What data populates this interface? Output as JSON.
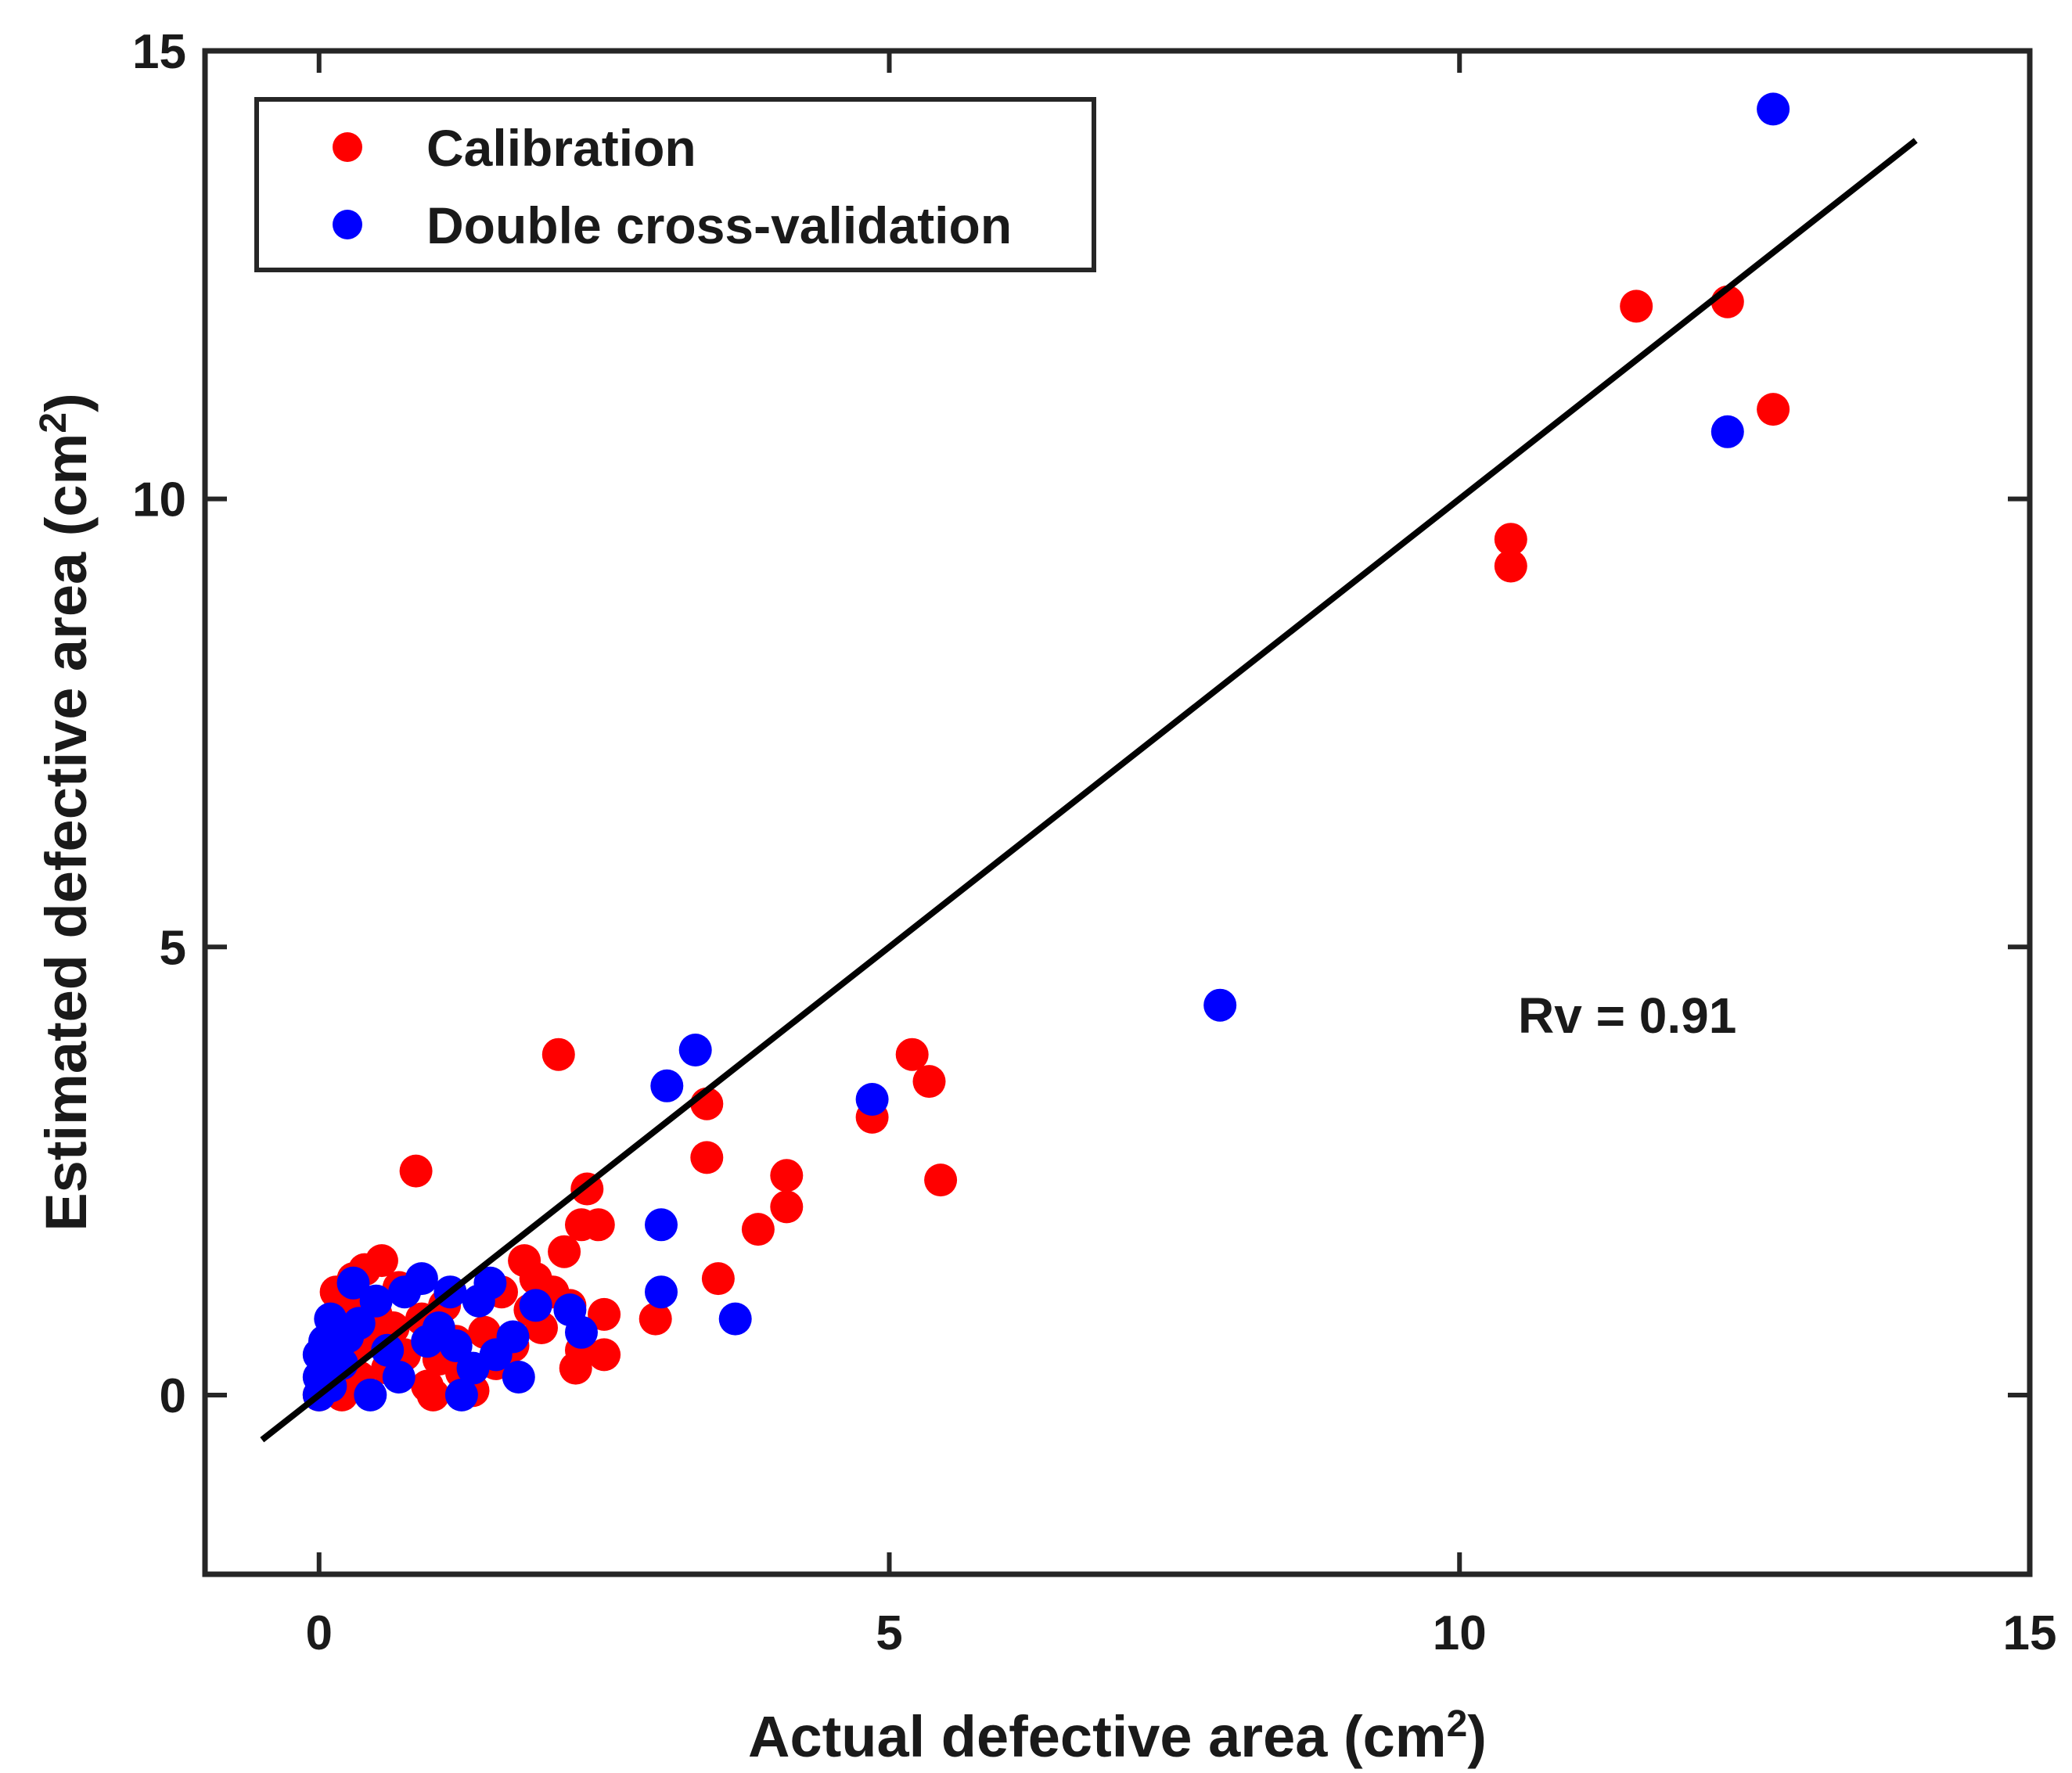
{
  "chart_data": {
    "type": "scatter",
    "title": "",
    "xlabel": "Actual defective area (cm",
    "xlabel_sup": "2",
    "xlabel_close": ")",
    "ylabel": "Estimated defective area (cm",
    "ylabel_sup": "2",
    "ylabel_close": ")",
    "xlim": [
      -1,
      15
    ],
    "ylim": [
      -2,
      15
    ],
    "xticks": [
      0,
      5,
      10,
      15
    ],
    "yticks": [
      0,
      5,
      10,
      15
    ],
    "grid": false,
    "legend_position": "top-left",
    "annotation": "Rv = 0.91",
    "fit_line": {
      "x": [
        -0.5,
        14.0
      ],
      "y": [
        -0.5,
        14.0
      ],
      "color": "#000000"
    },
    "series": [
      {
        "name": "Calibration",
        "color": "#ff0000",
        "points": [
          [
            0.0,
            0.0
          ],
          [
            0.05,
            0.1
          ],
          [
            0.1,
            0.3
          ],
          [
            0.1,
            0.55
          ],
          [
            0.15,
            0.8
          ],
          [
            0.15,
            1.15
          ],
          [
            0.2,
            0.7
          ],
          [
            0.2,
            0.0
          ],
          [
            0.25,
            0.4
          ],
          [
            0.3,
            0.95
          ],
          [
            0.3,
            1.3
          ],
          [
            0.35,
            0.2
          ],
          [
            0.4,
            1.4
          ],
          [
            0.45,
            0.6
          ],
          [
            0.5,
            0.9
          ],
          [
            0.55,
            1.5
          ],
          [
            0.6,
            0.3
          ],
          [
            0.65,
            0.75
          ],
          [
            0.7,
            1.2
          ],
          [
            0.75,
            0.45
          ],
          [
            0.85,
            2.5
          ],
          [
            0.9,
            0.85
          ],
          [
            0.95,
            0.1
          ],
          [
            1.0,
            0.0
          ],
          [
            1.05,
            0.4
          ],
          [
            1.1,
            1.0
          ],
          [
            1.2,
            0.6
          ],
          [
            1.25,
            0.25
          ],
          [
            1.35,
            0.05
          ],
          [
            1.45,
            0.7
          ],
          [
            1.55,
            0.35
          ],
          [
            1.6,
            1.15
          ],
          [
            1.7,
            0.55
          ],
          [
            1.8,
            1.5
          ],
          [
            1.85,
            0.95
          ],
          [
            1.9,
            1.3
          ],
          [
            1.95,
            0.75
          ],
          [
            2.05,
            1.15
          ],
          [
            2.15,
            1.6
          ],
          [
            2.2,
            1.0
          ],
          [
            2.1,
            3.8
          ],
          [
            2.25,
            0.3
          ],
          [
            2.3,
            0.5
          ],
          [
            2.3,
            1.9
          ],
          [
            2.35,
            2.3
          ],
          [
            2.45,
            1.9
          ],
          [
            2.5,
            0.9
          ],
          [
            2.5,
            0.45
          ],
          [
            2.95,
            0.85
          ],
          [
            3.4,
            3.25
          ],
          [
            3.4,
            2.65
          ],
          [
            3.5,
            1.3
          ],
          [
            3.85,
            1.85
          ],
          [
            4.1,
            2.45
          ],
          [
            4.1,
            2.1
          ],
          [
            4.85,
            3.1
          ],
          [
            5.2,
            3.8
          ],
          [
            5.35,
            3.5
          ],
          [
            5.45,
            2.4
          ],
          [
            10.45,
            9.55
          ],
          [
            10.45,
            9.25
          ],
          [
            11.55,
            12.15
          ],
          [
            12.35,
            12.2
          ],
          [
            12.75,
            11.0
          ]
        ]
      },
      {
        "name": "Double cross-validation",
        "color": "#0000ff",
        "points": [
          [
            0.0,
            0.0
          ],
          [
            0.0,
            0.2
          ],
          [
            0.0,
            0.45
          ],
          [
            0.05,
            0.3
          ],
          [
            0.05,
            0.6
          ],
          [
            0.1,
            0.85
          ],
          [
            0.1,
            0.1
          ],
          [
            0.15,
            0.5
          ],
          [
            0.2,
            0.35
          ],
          [
            0.25,
            0.65
          ],
          [
            0.3,
            1.25
          ],
          [
            0.35,
            0.8
          ],
          [
            0.45,
            0.0
          ],
          [
            0.5,
            1.05
          ],
          [
            0.6,
            0.5
          ],
          [
            0.7,
            0.2
          ],
          [
            0.75,
            1.15
          ],
          [
            0.9,
            1.3
          ],
          [
            0.95,
            0.6
          ],
          [
            1.05,
            0.75
          ],
          [
            1.15,
            1.15
          ],
          [
            1.2,
            0.55
          ],
          [
            1.25,
            0.0
          ],
          [
            1.35,
            0.3
          ],
          [
            1.4,
            1.05
          ],
          [
            1.5,
            1.25
          ],
          [
            1.55,
            0.45
          ],
          [
            1.7,
            0.65
          ],
          [
            1.75,
            0.2
          ],
          [
            1.9,
            1.0
          ],
          [
            2.2,
            0.95
          ],
          [
            2.3,
            0.7
          ],
          [
            3.0,
            1.15
          ],
          [
            3.0,
            1.9
          ],
          [
            3.05,
            3.45
          ],
          [
            3.3,
            3.85
          ],
          [
            3.65,
            0.85
          ],
          [
            4.85,
            3.3
          ],
          [
            7.9,
            4.35
          ],
          [
            12.35,
            10.75
          ],
          [
            12.75,
            14.35
          ]
        ]
      }
    ]
  }
}
